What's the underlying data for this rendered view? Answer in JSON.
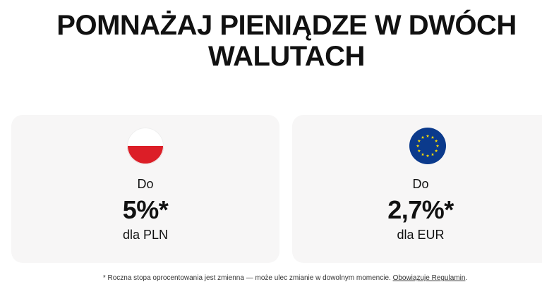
{
  "headline": {
    "line1": "POMNAŻAJ PIENIĄDZE W DWÓCH",
    "line2": "WALUTACH"
  },
  "cards": [
    {
      "flag_icon": "poland-flag-icon",
      "prefix": "Do",
      "rate": "5%*",
      "currency_label": "dla PLN"
    },
    {
      "flag_icon": "eu-flag-icon",
      "prefix": "Do",
      "rate": "2,7%*",
      "currency_label": "dla EUR"
    }
  ],
  "footnote": {
    "text": "* Roczna stopa oprocentowania jest zmienna — może ulec zmianie w dowolnym momencie. ",
    "link": "Obowiązuje Regulamin",
    "end": "."
  },
  "colors": {
    "card_background": "#f7f6f6",
    "poland_red": "#dc1e27",
    "eu_blue": "#0b3a8c",
    "eu_star": "#ffdd00"
  }
}
